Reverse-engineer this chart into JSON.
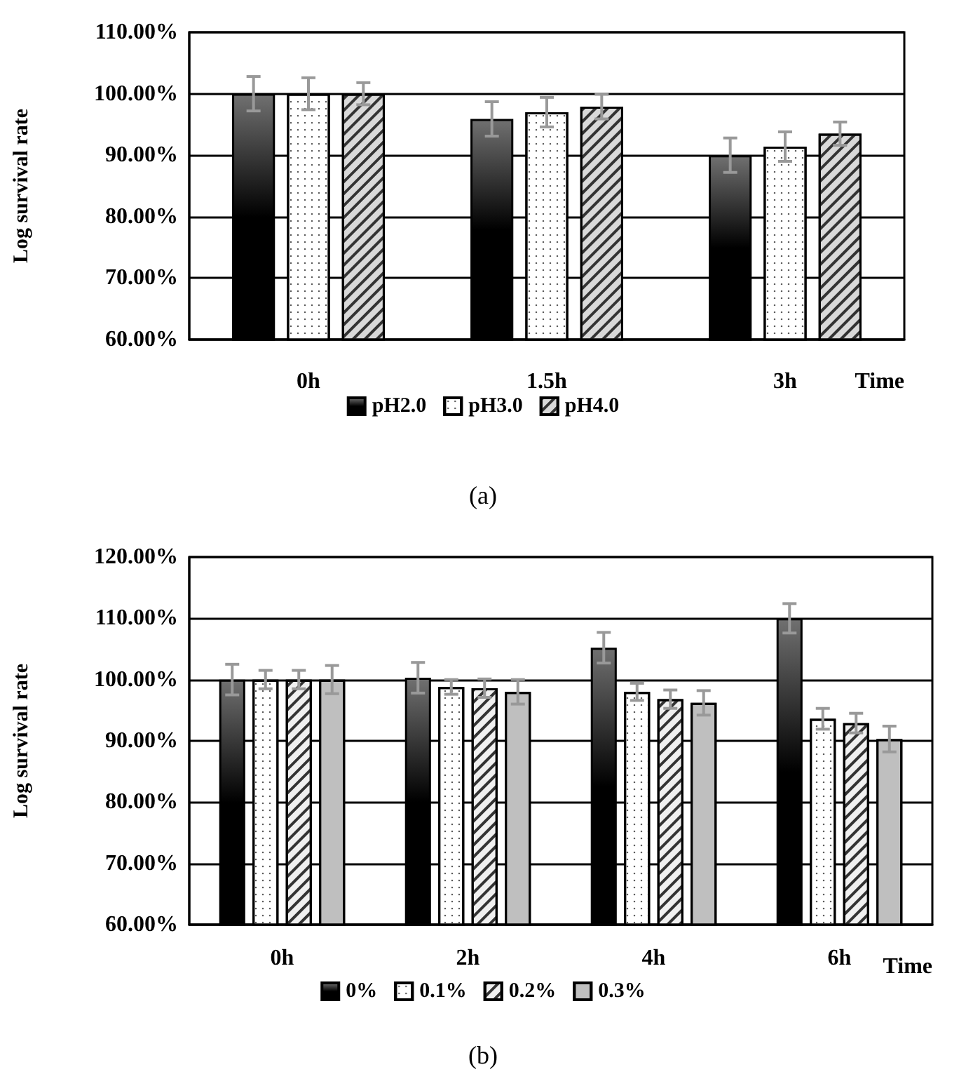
{
  "chart_data": [
    {
      "type": "bar",
      "xlabel": "Time",
      "ylabel": "Log survival rate",
      "categories": [
        "0h",
        "1.5h",
        "3h"
      ],
      "series": [
        {
          "name": "pH2.0",
          "color": "#000000",
          "values": [
            100,
            95.9,
            90.0
          ],
          "errors": [
            2.8,
            2.8,
            2.8
          ]
        },
        {
          "name": "pH3.0",
          "color": "#ffffff",
          "values": [
            100,
            97.0,
            91.4
          ],
          "errors": [
            2.6,
            2.4,
            2.4
          ]
        },
        {
          "name": "pH4.0",
          "color": "#d9d9d9",
          "values": [
            100,
            97.9,
            93.5
          ],
          "errors": [
            1.8,
            2.0,
            1.9
          ]
        }
      ],
      "ylim": [
        60,
        110
      ],
      "yticks": [
        {
          "value": 60,
          "label": "60.00%"
        },
        {
          "value": 70,
          "label": "70.00%"
        },
        {
          "value": 80,
          "label": "80.00%"
        },
        {
          "value": 90,
          "label": "90.00%"
        },
        {
          "value": 100,
          "label": "100.00%"
        },
        {
          "value": 110,
          "label": "110.00%"
        }
      ],
      "grid": "y",
      "legend": "bottom",
      "annotations": [
        "(a)"
      ]
    },
    {
      "type": "bar",
      "xlabel": "Time",
      "ylabel": "Log survival rate",
      "categories": [
        "0h",
        "2h",
        "4h",
        "6h"
      ],
      "series": [
        {
          "name": "0%",
          "color": "#000000",
          "values": [
            100,
            100.3,
            105.2,
            110.0
          ],
          "errors": [
            2.5,
            2.5,
            2.5,
            2.4
          ]
        },
        {
          "name": "0.1%",
          "color": "#ffffff",
          "values": [
            100,
            98.8,
            98.0,
            93.6
          ],
          "errors": [
            1.5,
            1.2,
            1.4,
            1.7
          ]
        },
        {
          "name": "0.2%",
          "color": "#f0f0f0",
          "values": [
            100,
            98.6,
            96.8,
            92.9
          ],
          "errors": [
            1.5,
            1.5,
            1.5,
            1.6
          ]
        },
        {
          "name": "0.3%",
          "color": "#bfbfbf",
          "values": [
            100,
            98.0,
            96.2,
            90.3
          ],
          "errors": [
            2.3,
            2.0,
            2.0,
            2.1
          ]
        }
      ],
      "ylim": [
        60,
        120
      ],
      "yticks": [
        {
          "value": 60,
          "label": "60.00%"
        },
        {
          "value": 70,
          "label": "70.00%"
        },
        {
          "value": 80,
          "label": "80.00%"
        },
        {
          "value": 90,
          "label": "90.00%"
        },
        {
          "value": 100,
          "label": "100.00%"
        },
        {
          "value": 110,
          "label": "110.00%"
        },
        {
          "value": 120,
          "label": "120.00%"
        }
      ],
      "grid": "y",
      "legend": "bottom",
      "annotations": [
        "(b)"
      ]
    }
  ]
}
